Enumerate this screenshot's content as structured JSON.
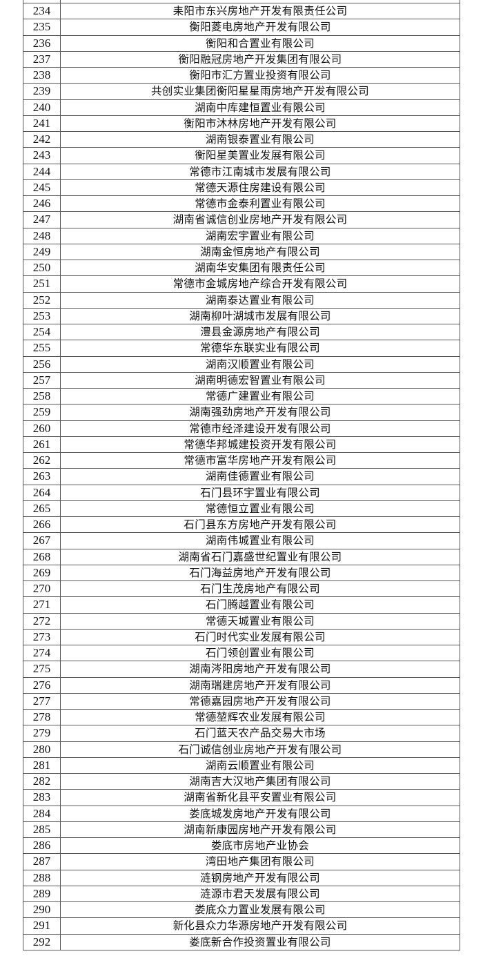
{
  "table": {
    "rows": [
      {
        "no": "234",
        "name": "耒阳市东兴房地产开发有限责任公司"
      },
      {
        "no": "235",
        "name": "衡阳菱电房地产开发有限公司"
      },
      {
        "no": "236",
        "name": "衡阳和合置业有限公司"
      },
      {
        "no": "237",
        "name": "衡阳融冠房地产开发集团有限公司"
      },
      {
        "no": "238",
        "name": "衡阳市汇方置业投资有限公司"
      },
      {
        "no": "239",
        "name": "共创实业集团衡阳星星雨房地产开发有限公司"
      },
      {
        "no": "240",
        "name": "湖南中库建恒置业有限公司"
      },
      {
        "no": "241",
        "name": "衡阳市沐林房地产开发有限公司"
      },
      {
        "no": "242",
        "name": "湖南银泰置业有限公司"
      },
      {
        "no": "243",
        "name": "衡阳星美置业发展有限公司"
      },
      {
        "no": "244",
        "name": "常德市江南城市发展有限公司"
      },
      {
        "no": "245",
        "name": "常德天源住房建设有限公司"
      },
      {
        "no": "246",
        "name": "常德市金泰利置业有限公司"
      },
      {
        "no": "247",
        "name": "湖南省诚信创业房地产开发有限公司"
      },
      {
        "no": "248",
        "name": "湖南宏宇置业有限公司"
      },
      {
        "no": "249",
        "name": "湖南金恒房地产有限公司"
      },
      {
        "no": "250",
        "name": "湖南华安集团有限责任公司"
      },
      {
        "no": "251",
        "name": "常德市金城房地产综合开发有限公司"
      },
      {
        "no": "252",
        "name": "湖南泰达置业有限公司"
      },
      {
        "no": "253",
        "name": "湖南柳叶湖城市发展有限公司"
      },
      {
        "no": "254",
        "name": "澧县金源房地产有限公司"
      },
      {
        "no": "255",
        "name": "常德华东联实业有限公司"
      },
      {
        "no": "256",
        "name": "湖南汉顺置业有限公司"
      },
      {
        "no": "257",
        "name": "湖南明德宏智置业有限公司"
      },
      {
        "no": "258",
        "name": "常德广建置业有限公司"
      },
      {
        "no": "259",
        "name": "湖南强劲房地产开发有限公司"
      },
      {
        "no": "260",
        "name": "常德市经泽建设开发有限公司"
      },
      {
        "no": "261",
        "name": "常德华邦城建投资开发有限公司"
      },
      {
        "no": "262",
        "name": "常德市富华房地产开发有限公司"
      },
      {
        "no": "263",
        "name": "湖南佳德置业有限公司"
      },
      {
        "no": "264",
        "name": "石门县环宇置业有限公司"
      },
      {
        "no": "265",
        "name": "常德恒立置业有限公司"
      },
      {
        "no": "266",
        "name": "石门县东方房地产开发有限公司"
      },
      {
        "no": "267",
        "name": "湖南伟城置业有限公司"
      },
      {
        "no": "268",
        "name": "湖南省石门嘉盛世纪置业有限公司"
      },
      {
        "no": "269",
        "name": "石门海益房地产开发有限公司"
      },
      {
        "no": "270",
        "name": "石门生茂房地产有限公司"
      },
      {
        "no": "271",
        "name": "石门腾越置业有限公司"
      },
      {
        "no": "272",
        "name": "常德天城置业有限公司"
      },
      {
        "no": "273",
        "name": "石门时代实业发展有限公司"
      },
      {
        "no": "274",
        "name": "石门领创置业有限公司"
      },
      {
        "no": "275",
        "name": "湖南涔阳房地产开发有限公司"
      },
      {
        "no": "276",
        "name": "湖南瑞建房地产开发有限公司"
      },
      {
        "no": "277",
        "name": "常德嘉园房地产开发有限公司"
      },
      {
        "no": "278",
        "name": "常德堃辉农业发展有限公司"
      },
      {
        "no": "279",
        "name": "石门蓝天农产品交易大市场"
      },
      {
        "no": "280",
        "name": "石门诚信创业房地产开发有限公司"
      },
      {
        "no": "281",
        "name": "湖南云顺置业有限公司"
      },
      {
        "no": "282",
        "name": "湖南吉大汉地产集团有限公司"
      },
      {
        "no": "283",
        "name": "湖南省新化县平安置业有限公司"
      },
      {
        "no": "284",
        "name": "娄底城发房地产开发有限公司"
      },
      {
        "no": "285",
        "name": "湖南新康园房地产开发有限公司"
      },
      {
        "no": "286",
        "name": "娄底市房地产业协会"
      },
      {
        "no": "287",
        "name": "湾田地产集团有限公司"
      },
      {
        "no": "288",
        "name": "涟钢房地产开发有限公司"
      },
      {
        "no": "289",
        "name": "涟源市君天发展有限公司"
      },
      {
        "no": "290",
        "name": "娄底众力置业发展有限公司"
      },
      {
        "no": "291",
        "name": "新化县众力华源房地产开发有限公司"
      },
      {
        "no": "292",
        "name": "娄底新合作投资置业有限公司"
      }
    ]
  }
}
